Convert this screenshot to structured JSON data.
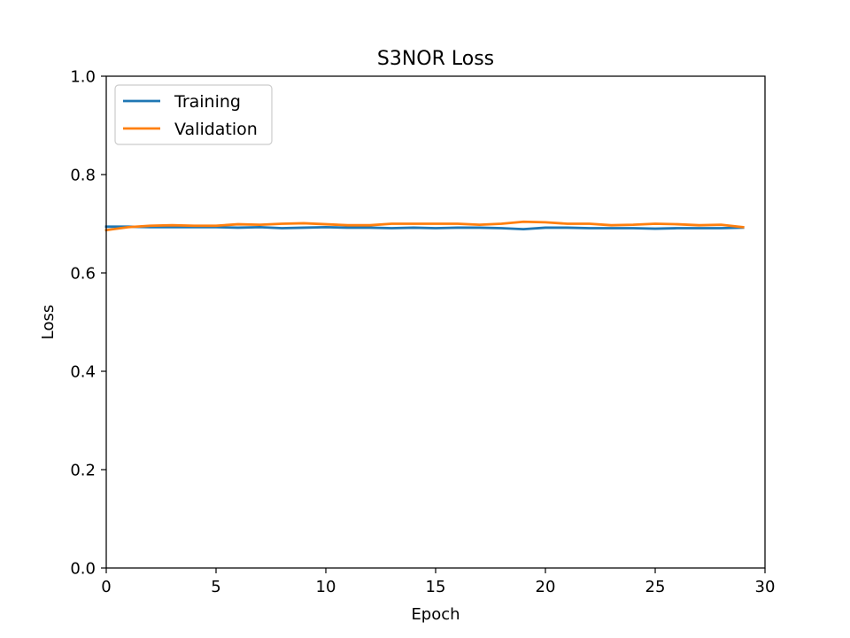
{
  "chart_data": {
    "type": "line",
    "title": "S3NOR Loss",
    "xlabel": "Epoch",
    "ylabel": "Loss",
    "xlim": [
      0,
      30
    ],
    "ylim": [
      0,
      1.0
    ],
    "x_ticks": [
      "0",
      "5",
      "10",
      "15",
      "20",
      "25",
      "30"
    ],
    "y_ticks": [
      "0.0",
      "0.2",
      "0.4",
      "0.6",
      "0.8",
      "1.0"
    ],
    "grid": false,
    "legend_position": "top-left",
    "x": [
      0,
      1,
      2,
      3,
      4,
      5,
      6,
      7,
      8,
      9,
      10,
      11,
      12,
      13,
      14,
      15,
      16,
      17,
      18,
      19,
      20,
      21,
      22,
      23,
      24,
      25,
      26,
      27,
      28,
      29
    ],
    "series": [
      {
        "name": "Training",
        "color": "#1f77b4",
        "values": [
          0.694,
          0.694,
          0.693,
          0.693,
          0.693,
          0.693,
          0.692,
          0.693,
          0.691,
          0.692,
          0.693,
          0.692,
          0.692,
          0.691,
          0.692,
          0.691,
          0.692,
          0.692,
          0.691,
          0.689,
          0.692,
          0.692,
          0.691,
          0.691,
          0.691,
          0.69,
          0.691,
          0.691,
          0.691,
          0.692
        ]
      },
      {
        "name": "Validation",
        "color": "#ff7f0e",
        "values": [
          0.687,
          0.693,
          0.696,
          0.697,
          0.696,
          0.696,
          0.699,
          0.698,
          0.7,
          0.701,
          0.699,
          0.697,
          0.697,
          0.7,
          0.7,
          0.7,
          0.7,
          0.698,
          0.7,
          0.704,
          0.703,
          0.7,
          0.7,
          0.697,
          0.698,
          0.7,
          0.699,
          0.697,
          0.698,
          0.693
        ]
      }
    ]
  }
}
